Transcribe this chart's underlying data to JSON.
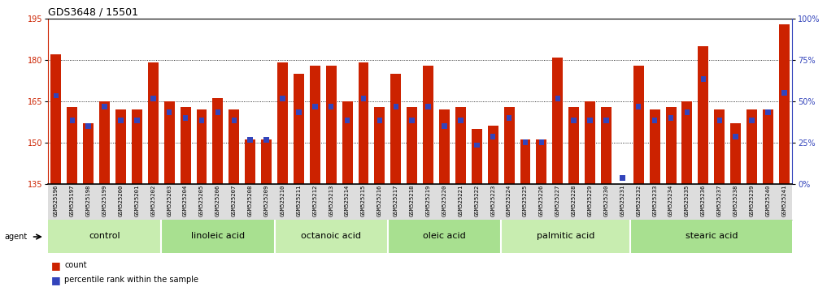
{
  "title": "GDS3648 / 15501",
  "samples": [
    "GSM525196",
    "GSM525197",
    "GSM525198",
    "GSM525199",
    "GSM525200",
    "GSM525201",
    "GSM525202",
    "GSM525203",
    "GSM525204",
    "GSM525205",
    "GSM525206",
    "GSM525207",
    "GSM525208",
    "GSM525209",
    "GSM525210",
    "GSM525211",
    "GSM525212",
    "GSM525213",
    "GSM525214",
    "GSM525215",
    "GSM525216",
    "GSM525217",
    "GSM525218",
    "GSM525219",
    "GSM525220",
    "GSM525221",
    "GSM525222",
    "GSM525223",
    "GSM525224",
    "GSM525225",
    "GSM525226",
    "GSM525227",
    "GSM525228",
    "GSM525229",
    "GSM525230",
    "GSM525231",
    "GSM525232",
    "GSM525233",
    "GSM525234",
    "GSM525235",
    "GSM525236",
    "GSM525237",
    "GSM525238",
    "GSM525239",
    "GSM525240",
    "GSM525241"
  ],
  "bar_values": [
    182,
    163,
    157,
    165,
    162,
    162,
    179,
    165,
    163,
    162,
    166,
    162,
    151,
    151,
    179,
    175,
    178,
    178,
    165,
    179,
    163,
    175,
    163,
    178,
    162,
    163,
    155,
    156,
    163,
    151,
    151,
    181,
    163,
    165,
    163,
    135,
    178,
    162,
    163,
    165,
    185,
    162,
    157,
    162,
    162,
    193
  ],
  "blue_values": [
    166,
    157,
    155,
    162,
    157,
    157,
    165,
    160,
    158,
    157,
    160,
    157,
    150,
    150,
    165,
    160,
    162,
    162,
    157,
    165,
    157,
    162,
    157,
    162,
    155,
    157,
    148,
    151,
    158,
    149,
    149,
    165,
    157,
    157,
    157,
    136,
    162,
    157,
    158,
    160,
    172,
    157,
    151,
    157,
    160,
    167
  ],
  "groups": [
    {
      "label": "control",
      "start": 0,
      "end": 7
    },
    {
      "label": "linoleic acid",
      "start": 7,
      "end": 14
    },
    {
      "label": "octanoic acid",
      "start": 14,
      "end": 21
    },
    {
      "label": "oleic acid",
      "start": 21,
      "end": 28
    },
    {
      "label": "palmitic acid",
      "start": 28,
      "end": 36
    },
    {
      "label": "stearic acid",
      "start": 36,
      "end": 46
    }
  ],
  "ymin": 135,
  "ymax": 195,
  "yticks": [
    135,
    150,
    165,
    180,
    195
  ],
  "y2ticks": [
    0,
    25,
    50,
    75,
    100
  ],
  "bar_color": "#cc2200",
  "blue_color": "#3344bb",
  "group_colors": [
    "#c8edb0",
    "#a8e090",
    "#c8edb0",
    "#a8e090",
    "#c8edb0",
    "#a8e090"
  ],
  "title_fontsize": 9,
  "tick_fontsize": 7,
  "label_fontsize": 8
}
